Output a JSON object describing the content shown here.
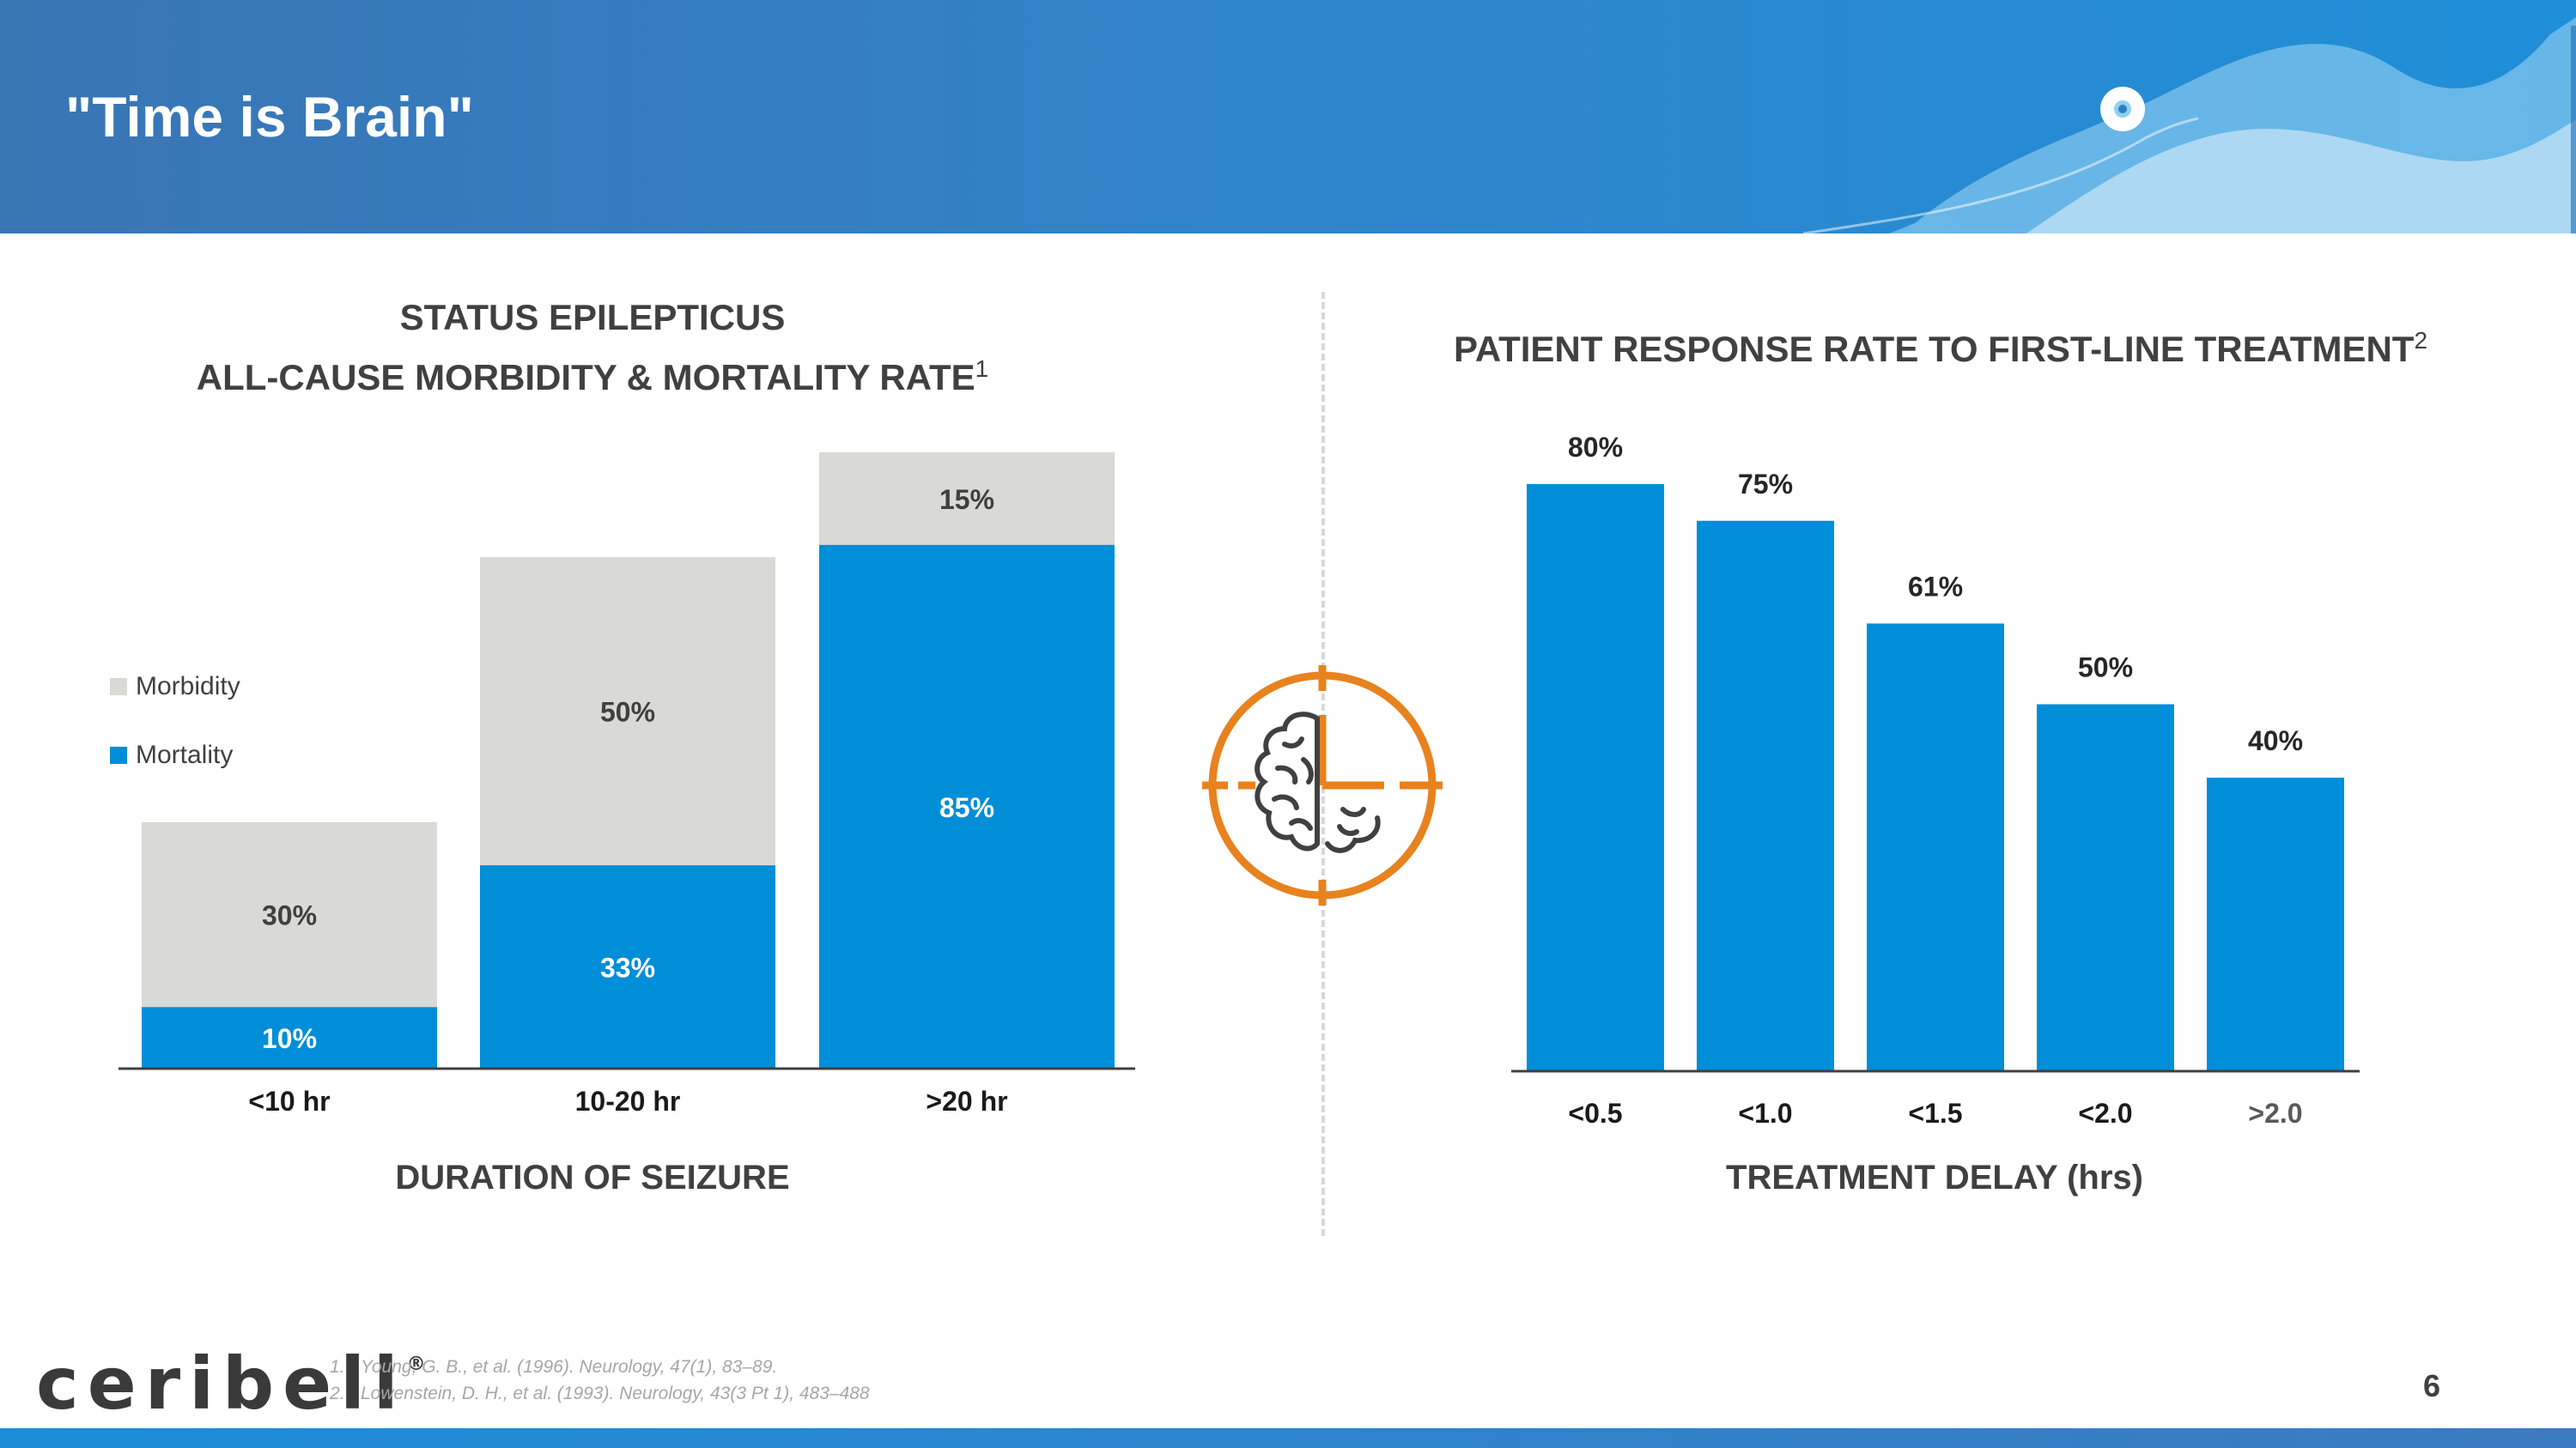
{
  "slide": {
    "title": "\"Time is Brain\"",
    "page_number": "6",
    "logo_text": "ceribell",
    "logo_mark": "®"
  },
  "colors": {
    "morbidity": "#d9d9d6",
    "mortality": "#008ed8",
    "response": "#008ed8",
    "icon_accent": "#e8821e",
    "icon_brain": "#404040"
  },
  "left": {
    "title_line1": "STATUS EPILEPTICUS",
    "title_line2": "ALL-CAUSE MORBIDITY & MORTALITY RATE",
    "title_ref": "1",
    "axis_title": "DURATION OF SEIZURE"
  },
  "right": {
    "title": "PATIENT RESPONSE RATE TO FIRST-LINE TREATMENT",
    "title_ref": "2",
    "axis_title": "TREATMENT DELAY (hrs)"
  },
  "legend": [
    {
      "label": "Morbidity",
      "color": "#d9d9d6"
    },
    {
      "label": "Mortality",
      "color": "#008ed8"
    }
  ],
  "chart_data": [
    {
      "type": "bar",
      "stacked": true,
      "title": "STATUS EPILEPTICUS ALL-CAUSE MORBIDITY & MORTALITY RATE",
      "xlabel": "DURATION OF SEIZURE",
      "ylabel": "",
      "categories": [
        "<10 hr",
        "10-20 hr",
        ">20 hr"
      ],
      "series": [
        {
          "name": "Mortality",
          "values": [
            10,
            33,
            85
          ],
          "labels": [
            "10%",
            "33%",
            "85%"
          ]
        },
        {
          "name": "Morbidity",
          "values": [
            30,
            50,
            15
          ],
          "labels": [
            "30%",
            "50%",
            "15%"
          ]
        }
      ],
      "ylim": [
        0,
        100
      ],
      "legend": "left",
      "grid": false
    },
    {
      "type": "bar",
      "title": "PATIENT RESPONSE RATE TO FIRST-LINE TREATMENT",
      "xlabel": "TREATMENT DELAY (hrs)",
      "ylabel": "",
      "categories": [
        "<0.5",
        "<1.0",
        "<1.5",
        "<2.0",
        ">2.0"
      ],
      "values": [
        80,
        75,
        61,
        50,
        40
      ],
      "labels": [
        "80%",
        "75%",
        "61%",
        "50%",
        "40%"
      ],
      "ylim": [
        0,
        80
      ],
      "grid": false
    }
  ],
  "references": [
    {
      "num": "1.",
      "text": "Young, G. B., et al. (1996). Neurology, 47(1), 83–89."
    },
    {
      "num": "2.",
      "text": "Lowenstein, D. H., et al. (1993). Neurology, 43(3 Pt 1), 483–488"
    }
  ]
}
